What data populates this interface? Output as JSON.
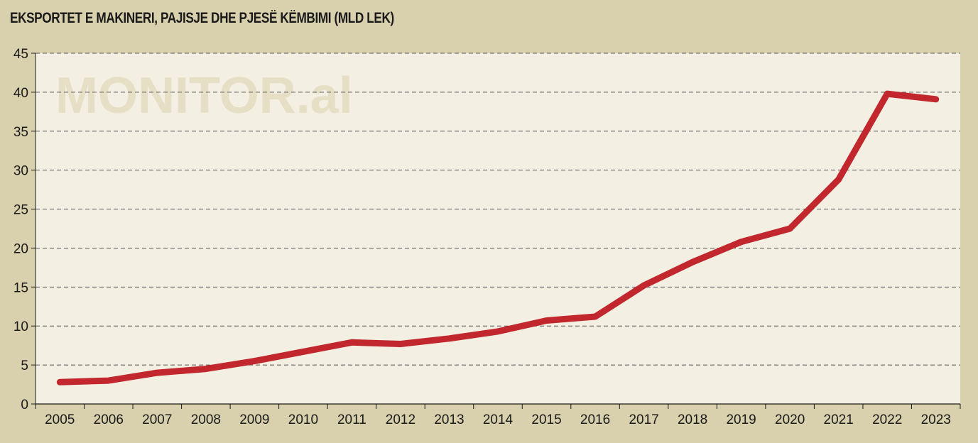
{
  "watermark": "MONITOR.al",
  "colors": {
    "background": "#d9d1ad",
    "plot_area": "#f3efe2",
    "line": "#c1272d",
    "grid": "#555555"
  },
  "chart_data": {
    "type": "line",
    "title": "EKSPORTET E MAKINERI, PAJISJE DHE PJESË KËMBIMI (MLD LEK)",
    "xlabel": "",
    "ylabel": "",
    "categories": [
      "2005",
      "2006",
      "2007",
      "2008",
      "2009",
      "2010",
      "2011",
      "2012",
      "2013",
      "2014",
      "2015",
      "2016",
      "2017",
      "2018",
      "2019",
      "2020",
      "2021",
      "2022",
      "2023"
    ],
    "series": [
      {
        "values": [
          2.8,
          3.0,
          4.0,
          4.5,
          5.5,
          6.7,
          7.9,
          7.7,
          8.4,
          9.3,
          10.7,
          11.2,
          15.2,
          18.2,
          20.8,
          22.5,
          28.8,
          39.8,
          39.1
        ]
      }
    ],
    "ylim": [
      0,
      45
    ],
    "yticks": [
      0,
      5,
      10,
      15,
      20,
      25,
      30,
      35,
      40,
      45
    ],
    "grid": true,
    "grid_style": "dashed-horizontal"
  }
}
